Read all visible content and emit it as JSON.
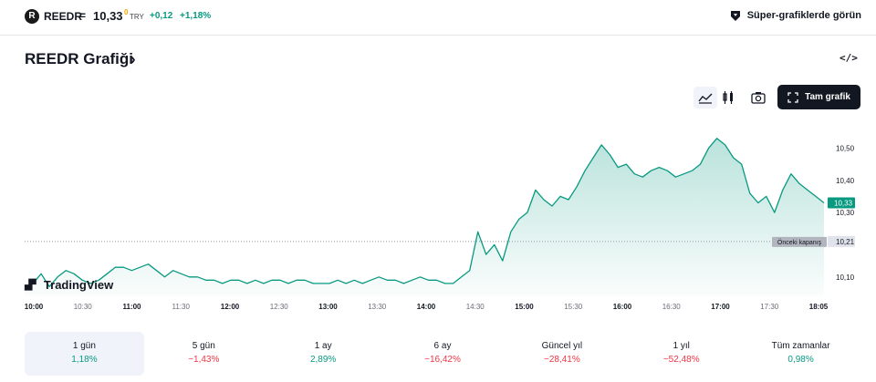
{
  "header": {
    "logo_letter": "R",
    "symbol": "REEDR",
    "eq": "=",
    "price": "10,33",
    "price_sup": "0",
    "currency": "TRY",
    "change": "+0,12",
    "change_pct": "+1,18%",
    "super_charts": "Süper-grafiklerde görün"
  },
  "title": "REEDR Grafiği",
  "title_chevron": "›",
  "embed_icon_text": "</>",
  "toolbar": {
    "full_chart": "Tam grafik"
  },
  "watermark": "TradingView",
  "chart_data": {
    "type": "area",
    "x_start": "10:00",
    "x_end": "18:05",
    "x_tick_labels": [
      "10:00",
      "10:30",
      "11:00",
      "11:30",
      "12:00",
      "12:30",
      "13:00",
      "13:30",
      "14:00",
      "14:30",
      "15:00",
      "15:30",
      "16:00",
      "16:30",
      "17:00",
      "17:30",
      "18:05"
    ],
    "y_tick_labels": [
      "10,50",
      "10,40",
      "10,30",
      "10,10"
    ],
    "y_ticks": [
      10.5,
      10.4,
      10.3,
      10.1
    ],
    "ylim": [
      10.04,
      10.62
    ],
    "previous_close": 10.21,
    "previous_close_label": "Önceki kapanış",
    "previous_close_value": "10,21",
    "last_value": 10.33,
    "last_value_label": "10,33",
    "line_color": "#089981",
    "series": [
      {
        "values": [
          10.06,
          10.08,
          10.11,
          10.07,
          10.1,
          10.12,
          10.11,
          10.09,
          10.08,
          10.09,
          10.11,
          10.13,
          10.13,
          10.12,
          10.13,
          10.14,
          10.12,
          10.1,
          10.12,
          10.11,
          10.1,
          10.1,
          10.09,
          10.09,
          10.08,
          10.09,
          10.09,
          10.08,
          10.09,
          10.08,
          10.09,
          10.09,
          10.08,
          10.09,
          10.09,
          10.08,
          10.08,
          10.08,
          10.09,
          10.08,
          10.09,
          10.08,
          10.09,
          10.1,
          10.09,
          10.09,
          10.08,
          10.09,
          10.1,
          10.09,
          10.09,
          10.08,
          10.08,
          10.1,
          10.12,
          10.24,
          10.17,
          10.2,
          10.15,
          10.24,
          10.28,
          10.3,
          10.37,
          10.34,
          10.32,
          10.35,
          10.34,
          10.38,
          10.43,
          10.47,
          10.51,
          10.48,
          10.44,
          10.45,
          10.42,
          10.41,
          10.43,
          10.44,
          10.43,
          10.41,
          10.42,
          10.43,
          10.45,
          10.5,
          10.53,
          10.51,
          10.47,
          10.45,
          10.36,
          10.33,
          10.35,
          10.3,
          10.37,
          10.42,
          10.39,
          10.37,
          10.35,
          10.33
        ]
      }
    ]
  },
  "periods": [
    {
      "label": "1 gün",
      "value": "1,18%",
      "sign": "pos",
      "active": true
    },
    {
      "label": "5 gün",
      "value": "−1,43%",
      "sign": "neg",
      "active": false
    },
    {
      "label": "1 ay",
      "value": "2,89%",
      "sign": "pos",
      "active": false
    },
    {
      "label": "6 ay",
      "value": "−16,42%",
      "sign": "neg",
      "active": false
    },
    {
      "label": "Güncel yıl",
      "value": "−28,41%",
      "sign": "neg",
      "active": false
    },
    {
      "label": "1 yıl",
      "value": "−52,48%",
      "sign": "neg",
      "active": false
    },
    {
      "label": "Tüm zamanlar",
      "value": "0,98%",
      "sign": "pos",
      "active": false
    }
  ]
}
